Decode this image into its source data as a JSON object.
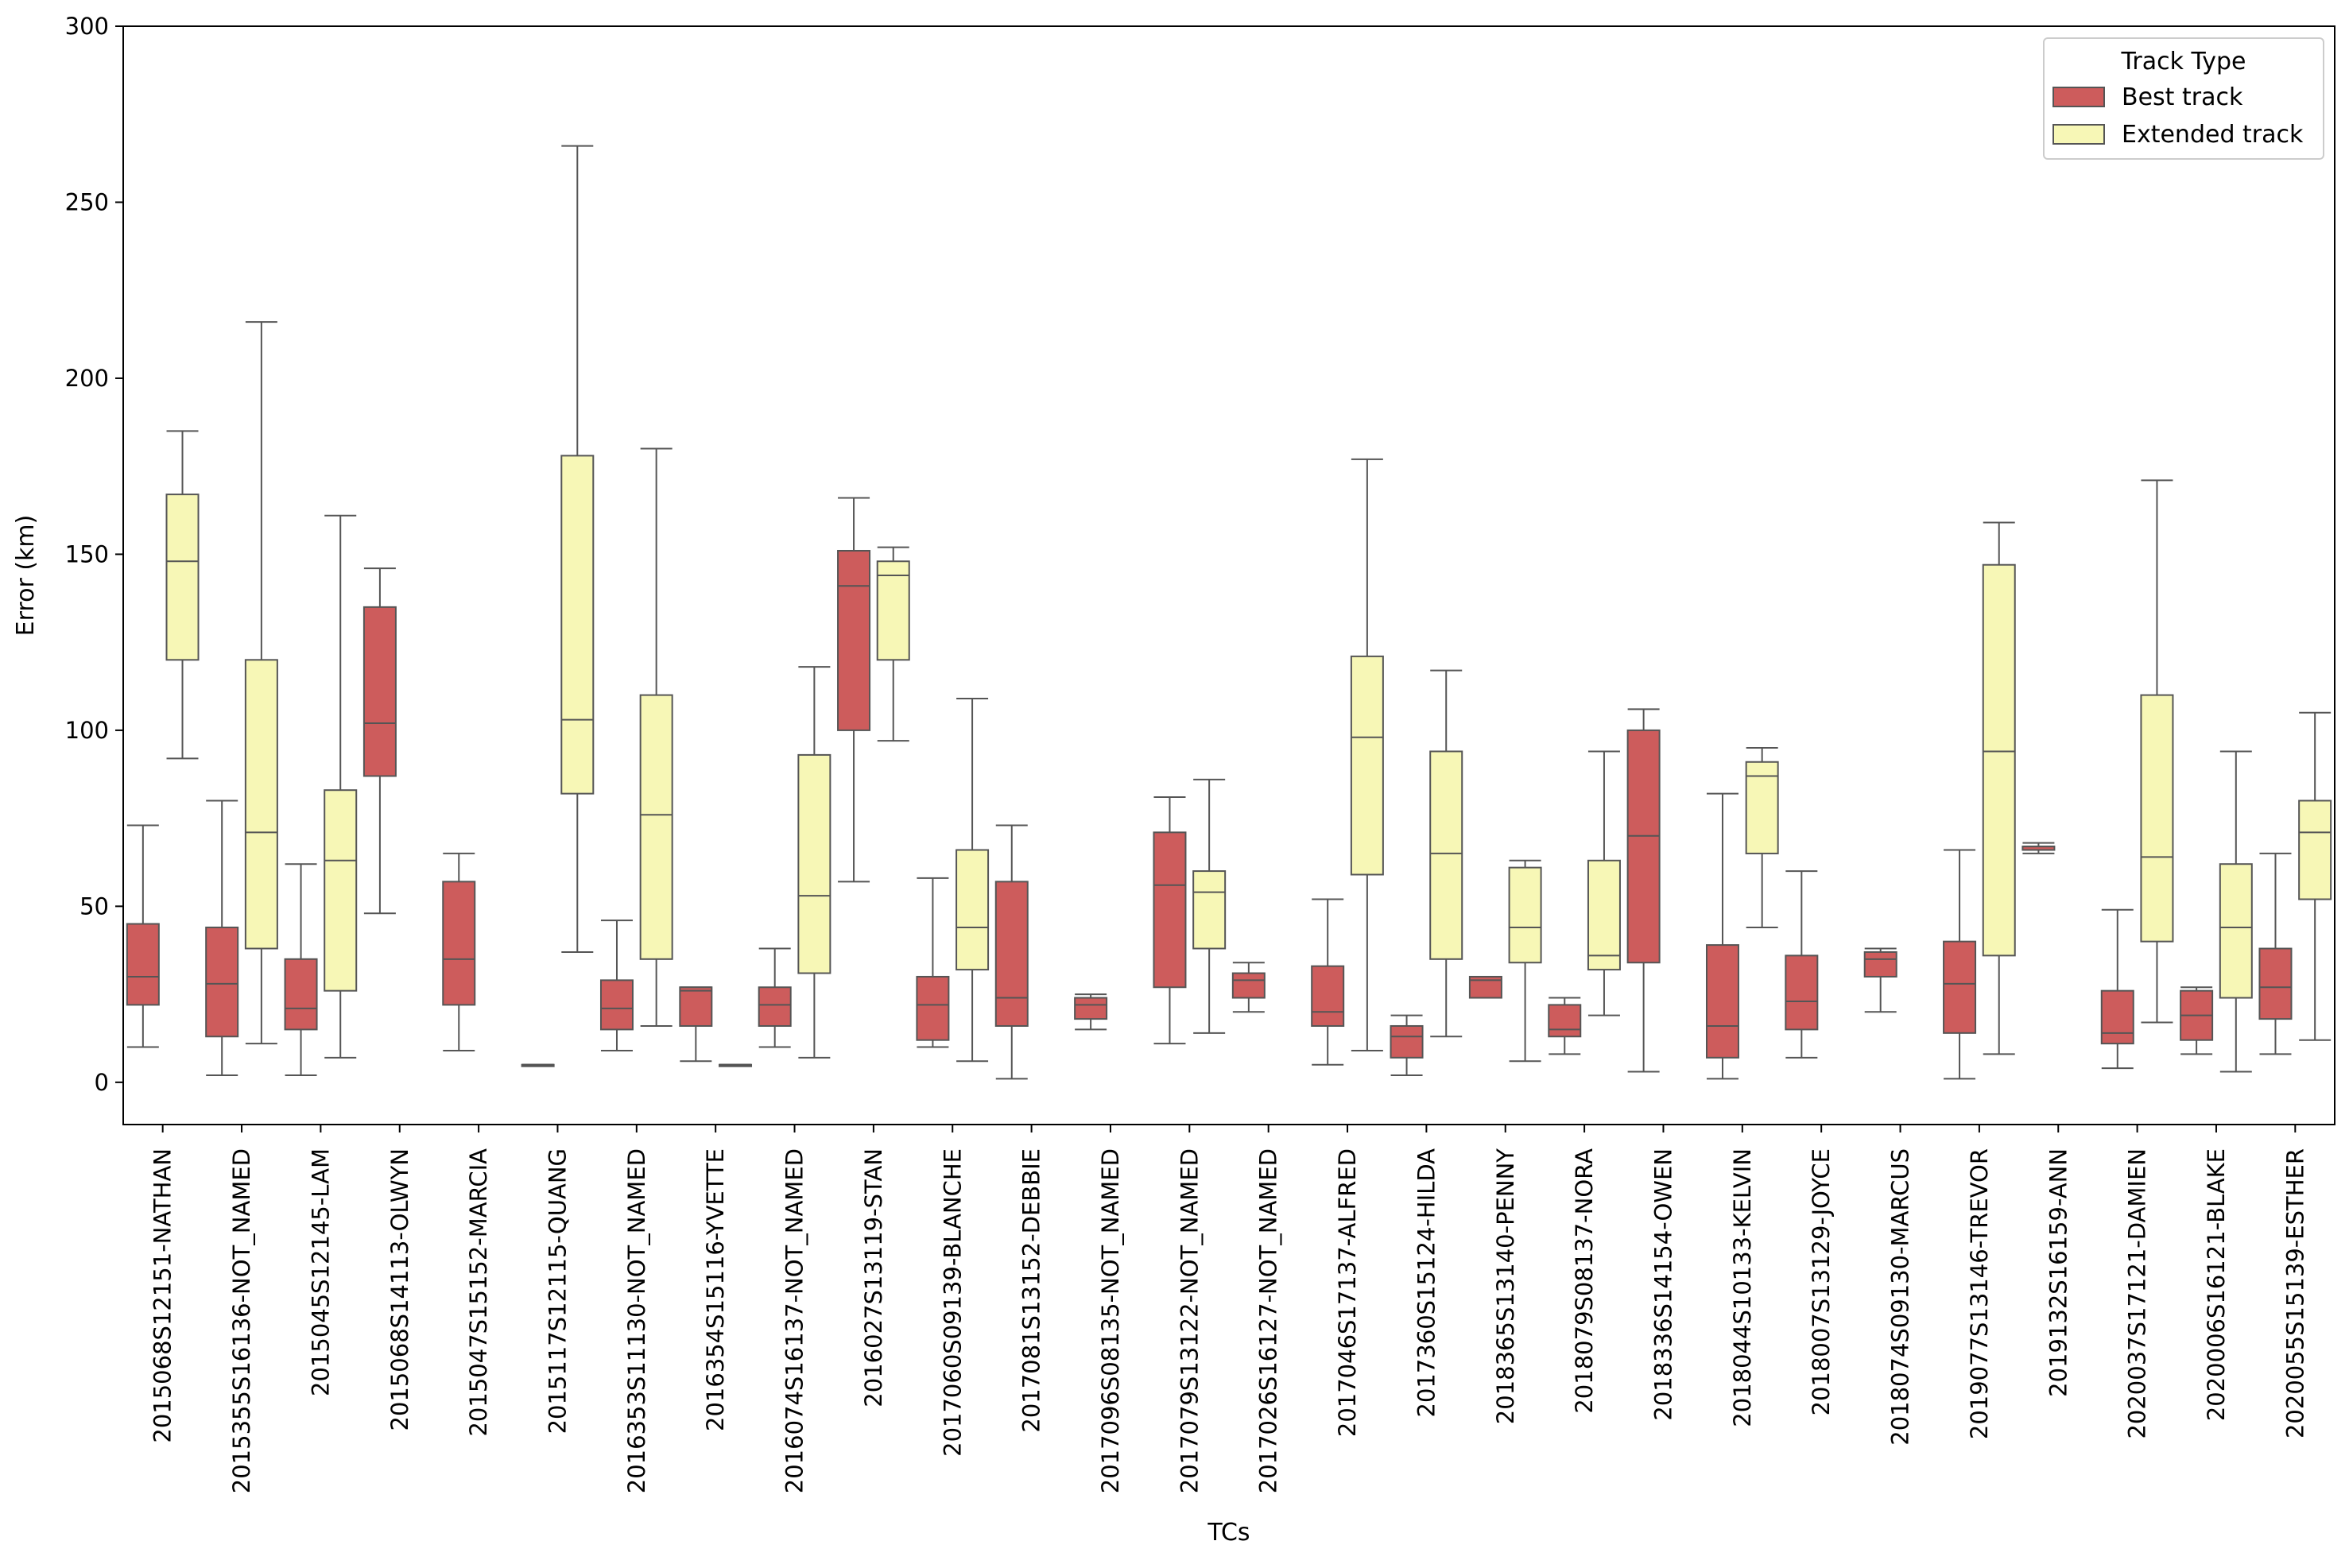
{
  "chart_data": {
    "type": "boxplot",
    "title": "",
    "xlabel": "TCs",
    "ylabel": "Error (km)",
    "ylim": [
      -12,
      300
    ],
    "yticks": [
      0,
      50,
      100,
      150,
      200,
      250,
      300
    ],
    "grid": false,
    "legend": {
      "title": "Track Type",
      "placement": "top-right",
      "entries": [
        "Best track",
        "Extended track"
      ]
    },
    "colors": {
      "Best track": "#cd5c5c",
      "Extended track": "#f7f7b6",
      "edge": "#555555"
    },
    "categories": [
      "2015068S12151-NATHAN",
      "2015355S16136-NOT_NAMED",
      "2015045S12145-LAM",
      "2015068S14113-OLWYN",
      "2015047S15152-MARCIA",
      "2015117S12115-QUANG",
      "2016353S11130-NOT_NAMED",
      "2016354S15116-YVETTE",
      "2016074S16137-NOT_NAMED",
      "2016027S13119-STAN",
      "2017060S09139-BLANCHE",
      "2017081S13152-DEBBIE",
      "2017096S08135-NOT_NAMED",
      "2017079S13122-NOT_NAMED",
      "2017026S16127-NOT_NAMED",
      "2017046S17137-ALFRED",
      "2017360S15124-HILDA",
      "2018365S13140-PENNY",
      "2018079S08137-NORA",
      "2018336S14154-OWEN",
      "2018044S10133-KELVIN",
      "2018007S13129-JOYCE",
      "2018074S09130-MARCUS",
      "2019077S13146-TREVOR",
      "2019132S16159-ANN",
      "2020037S17121-DAMIEN",
      "2020006S16121-BLAKE",
      "2020055S15139-ESTHER"
    ],
    "series": [
      {
        "name": "Best track",
        "boxes": [
          {
            "category": 0,
            "whislo": 10,
            "q1": 22,
            "med": 30,
            "q3": 45,
            "whishi": 73
          },
          {
            "category": 1,
            "whislo": 2,
            "q1": 13,
            "med": 28,
            "q3": 44,
            "whishi": 80
          },
          {
            "category": 2,
            "whislo": 2,
            "q1": 15,
            "med": 21,
            "q3": 35,
            "whishi": 62
          },
          {
            "category": 3,
            "whislo": 48,
            "q1": 87,
            "med": 102,
            "q3": 135,
            "whishi": 146
          },
          {
            "category": 4,
            "whislo": 9,
            "q1": 22,
            "med": 35,
            "q3": 57,
            "whishi": 65
          },
          {
            "category": 5,
            "whislo": 5,
            "q1": 5,
            "med": 5,
            "q3": 5,
            "whishi": 5
          },
          {
            "category": 6,
            "whislo": 9,
            "q1": 15,
            "med": 21,
            "q3": 29,
            "whishi": 46
          },
          {
            "category": 7,
            "whislo": 6,
            "q1": 16,
            "med": 26,
            "q3": 27,
            "whishi": 27
          },
          {
            "category": 8,
            "whislo": 10,
            "q1": 16,
            "med": 22,
            "q3": 27,
            "whishi": 38
          },
          {
            "category": 9,
            "whislo": 57,
            "q1": 100,
            "med": 141,
            "q3": 151,
            "whishi": 166
          },
          {
            "category": 10,
            "whislo": 10,
            "q1": 12,
            "med": 22,
            "q3": 30,
            "whishi": 58
          },
          {
            "category": 11,
            "whislo": 1,
            "q1": 16,
            "med": 24,
            "q3": 57,
            "whishi": 73
          },
          {
            "category": 12,
            "whislo": 15,
            "q1": 18,
            "med": 22,
            "q3": 24,
            "whishi": 25
          },
          {
            "category": 13,
            "whislo": 11,
            "q1": 27,
            "med": 56,
            "q3": 71,
            "whishi": 81
          },
          {
            "category": 14,
            "whislo": 20,
            "q1": 24,
            "med": 29,
            "q3": 31,
            "whishi": 34
          },
          {
            "category": 15,
            "whislo": 5,
            "q1": 16,
            "med": 20,
            "q3": 33,
            "whishi": 52
          },
          {
            "category": 16,
            "whislo": 2,
            "q1": 7,
            "med": 13,
            "q3": 16,
            "whishi": 19
          },
          {
            "category": 17,
            "whislo": 24,
            "q1": 24,
            "med": 29,
            "q3": 30,
            "whishi": 30
          },
          {
            "category": 18,
            "whislo": 8,
            "q1": 13,
            "med": 15,
            "q3": 22,
            "whishi": 24
          },
          {
            "category": 19,
            "whislo": 3,
            "q1": 34,
            "med": 70,
            "q3": 100,
            "whishi": 106
          },
          {
            "category": 20,
            "whislo": 1,
            "q1": 7,
            "med": 16,
            "q3": 39,
            "whishi": 82
          },
          {
            "category": 21,
            "whislo": 7,
            "q1": 15,
            "med": 23,
            "q3": 36,
            "whishi": 60
          },
          {
            "category": 22,
            "whislo": 20,
            "q1": 30,
            "med": 35,
            "q3": 37,
            "whishi": 38
          },
          {
            "category": 23,
            "whislo": 1,
            "q1": 14,
            "med": 28,
            "q3": 40,
            "whishi": 66
          },
          {
            "category": 24,
            "whislo": 65,
            "q1": 66,
            "med": 67,
            "q3": 67,
            "whishi": 68
          },
          {
            "category": 25,
            "whislo": 4,
            "q1": 11,
            "med": 14,
            "q3": 26,
            "whishi": 49
          },
          {
            "category": 26,
            "whislo": 8,
            "q1": 12,
            "med": 19,
            "q3": 26,
            "whishi": 27
          },
          {
            "category": 27,
            "whislo": 8,
            "q1": 18,
            "med": 27,
            "q3": 38,
            "whishi": 65
          }
        ]
      },
      {
        "name": "Extended track",
        "boxes": [
          {
            "category": 0,
            "whislo": 92,
            "q1": 120,
            "med": 148,
            "q3": 167,
            "whishi": 185
          },
          {
            "category": 1,
            "whislo": 11,
            "q1": 38,
            "med": 71,
            "q3": 120,
            "whishi": 216
          },
          {
            "category": 2,
            "whislo": 7,
            "q1": 26,
            "med": 63,
            "q3": 83,
            "whishi": 161
          },
          {
            "category": 5,
            "whislo": 37,
            "q1": 82,
            "med": 103,
            "q3": 178,
            "whishi": 266
          },
          {
            "category": 6,
            "whislo": 16,
            "q1": 35,
            "med": 76,
            "q3": 110,
            "whishi": 180
          },
          {
            "category": 7,
            "whislo": 5,
            "q1": 5,
            "med": 5,
            "q3": 5,
            "whishi": 5
          },
          {
            "category": 8,
            "whislo": 7,
            "q1": 31,
            "med": 53,
            "q3": 93,
            "whishi": 118
          },
          {
            "category": 9,
            "whislo": 97,
            "q1": 120,
            "med": 144,
            "q3": 148,
            "whishi": 152
          },
          {
            "category": 10,
            "whislo": 6,
            "q1": 32,
            "med": 44,
            "q3": 66,
            "whishi": 109
          },
          {
            "category": 13,
            "whislo": 14,
            "q1": 38,
            "med": 54,
            "q3": 60,
            "whishi": 86
          },
          {
            "category": 15,
            "whislo": 9,
            "q1": 59,
            "med": 98,
            "q3": 121,
            "whishi": 177
          },
          {
            "category": 16,
            "whislo": 13,
            "q1": 35,
            "med": 65,
            "q3": 94,
            "whishi": 117
          },
          {
            "category": 17,
            "whislo": 6,
            "q1": 34,
            "med": 44,
            "q3": 61,
            "whishi": 63
          },
          {
            "category": 18,
            "whislo": 19,
            "q1": 32,
            "med": 36,
            "q3": 63,
            "whishi": 94
          },
          {
            "category": 20,
            "whislo": 44,
            "q1": 65,
            "med": 87,
            "q3": 91,
            "whishi": 95
          },
          {
            "category": 23,
            "whislo": 8,
            "q1": 36,
            "med": 94,
            "q3": 147,
            "whishi": 159
          },
          {
            "category": 25,
            "whislo": 17,
            "q1": 40,
            "med": 64,
            "q3": 110,
            "whishi": 171
          },
          {
            "category": 26,
            "whislo": 3,
            "q1": 24,
            "med": 44,
            "q3": 62,
            "whishi": 94
          },
          {
            "category": 27,
            "whislo": 12,
            "q1": 52,
            "med": 71,
            "q3": 80,
            "whishi": 105
          }
        ]
      }
    ]
  }
}
